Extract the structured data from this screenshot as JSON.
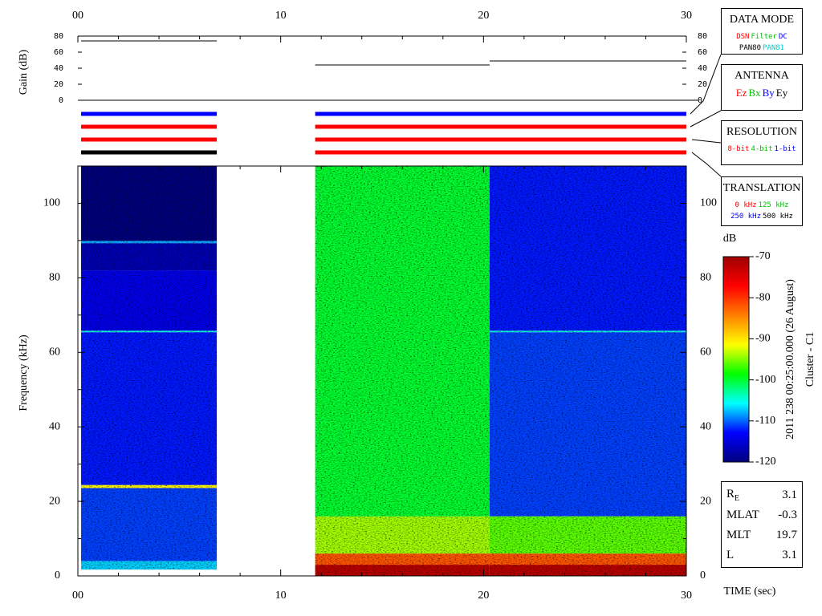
{
  "chart_data": {
    "type": "spectrogram",
    "time_axis": {
      "xlim": [
        0,
        30
      ],
      "xticks": [
        {
          "value": 0,
          "label": "00"
        },
        10,
        20,
        30
      ],
      "xminorticks": [
        2,
        4,
        6,
        8,
        12,
        14,
        16,
        18,
        22,
        24,
        26,
        28
      ],
      "xlabel": "TIME (sec)"
    },
    "gain_panel": {
      "ylabel": "Gain (dB)",
      "ylim": [
        0,
        80
      ],
      "yticks": [
        0,
        20,
        40,
        60,
        80
      ],
      "color": "#000000",
      "segments": [
        {
          "t": [
            0.16,
            6.85
          ],
          "value": 74
        },
        {
          "t": [
            11.7,
            20.3
          ],
          "value": 44
        },
        {
          "t": [
            20.3,
            30
          ],
          "value": 49
        }
      ]
    },
    "status_bars": [
      [
        {
          "t": [
            0.16,
            6.85
          ],
          "color": "#0000ff"
        },
        {
          "t": [
            11.7,
            30
          ],
          "color": "#0000ff"
        }
      ],
      [
        {
          "t": [
            0.16,
            6.85
          ],
          "color": "#ff0000"
        },
        {
          "t": [
            11.7,
            30
          ],
          "color": "#ff0000"
        }
      ],
      [
        {
          "t": [
            0.16,
            6.85
          ],
          "color": "#ff0000"
        },
        {
          "t": [
            11.7,
            30
          ],
          "color": "#ff0000"
        }
      ],
      [
        {
          "t": [
            0.16,
            6.85
          ],
          "color": "#000000"
        },
        {
          "t": [
            11.7,
            30
          ],
          "color": "#ff0000"
        }
      ]
    ],
    "spectrogram": {
      "ylabel": "Frequency (kHz)",
      "ylim": [
        0,
        110
      ],
      "yticks": [
        0,
        20,
        40,
        60,
        80,
        100
      ],
      "yminorticks": [
        10,
        30,
        50,
        70,
        90
      ],
      "segments": [
        {
          "t": [
            0.16,
            6.85
          ],
          "bands": [
            {
              "f": [
                1.7,
                4
              ],
              "db": -107
            },
            {
              "f": [
                4,
                23.6
              ],
              "db": -111
            },
            {
              "f": [
                23.6,
                24.4
              ],
              "db": -91
            },
            {
              "f": [
                24.4,
                65.4
              ],
              "db": -112
            },
            {
              "f": [
                65.4,
                65.8
              ],
              "db": -105
            },
            {
              "f": [
                65.8,
                82
              ],
              "db": -114
            },
            {
              "f": [
                82,
                89.3
              ],
              "db": -117
            },
            {
              "f": [
                89.3,
                89.9
              ],
              "db": -108
            },
            {
              "f": [
                89.9,
                110
              ],
              "db": -120
            }
          ]
        },
        {
          "t": [
            11.7,
            20.3
          ],
          "bands": [
            {
              "f": [
                0,
                3
              ],
              "db": -72
            },
            {
              "f": [
                3,
                6
              ],
              "db": -82
            },
            {
              "f": [
                6,
                16
              ],
              "db": -94
            },
            {
              "f": [
                16,
                110
              ],
              "db": -100
            }
          ]
        },
        {
          "t": [
            20.3,
            30
          ],
          "bands": [
            {
              "f": [
                0,
                3
              ],
              "db": -72
            },
            {
              "f": [
                3,
                6
              ],
              "db": -82
            },
            {
              "f": [
                6,
                16
              ],
              "db": -96
            },
            {
              "f": [
                16,
                65.4
              ],
              "db": -111
            },
            {
              "f": [
                65.4,
                65.8
              ],
              "db": -105
            },
            {
              "f": [
                65.8,
                110
              ],
              "db": -112
            }
          ]
        }
      ]
    },
    "colorbar": {
      "title": "dB",
      "lim": [
        -120,
        -70
      ],
      "ticks": [
        -70,
        -80,
        -90,
        -100,
        -110,
        -120
      ],
      "colormap": [
        "#00007f",
        "#0000ff",
        "#00ffff",
        "#00ff00",
        "#ffff00",
        "#ff7f00",
        "#ff0000",
        "#9f0000"
      ],
      "date_label": "2011 238 00:25:00.000 (26 August)",
      "source_label": "Cluster - C1"
    },
    "legends": [
      {
        "title": "DATA MODE",
        "rows": [
          [
            {
              "text": "DSN",
              "color": "#ff0000"
            },
            {
              "text": "Filter",
              "color": "#00c000"
            },
            {
              "text": "DC",
              "color": "#0000ff"
            }
          ],
          [
            {
              "text": "PAN80",
              "color": "#000000"
            },
            {
              "text": "PAN81",
              "color": "#00cccc"
            }
          ]
        ]
      },
      {
        "title": "ANTENNA",
        "rows": [
          [
            {
              "text": "Ez",
              "color": "#ff0000"
            },
            {
              "text": "Bx",
              "color": "#00c000"
            },
            {
              "text": "By",
              "color": "#0000ff"
            },
            {
              "text": "Ey",
              "color": "#000000"
            }
          ]
        ]
      },
      {
        "title": "RESOLUTION",
        "rows": [
          [
            {
              "text": "8-bit",
              "color": "#ff0000"
            },
            {
              "text": "4-bit",
              "color": "#00c000"
            },
            {
              "text": "1-bit",
              "color": "#0000ff"
            }
          ]
        ]
      },
      {
        "title": "TRANSLATION",
        "rows": [
          [
            {
              "text": "0 kHz",
              "color": "#ff0000"
            },
            {
              "text": "125 kHz",
              "color": "#00c000"
            }
          ],
          [
            {
              "text": "250 kHz",
              "color": "#0000ff"
            },
            {
              "text": "500 kHz",
              "color": "#000000"
            }
          ]
        ]
      }
    ],
    "info": [
      {
        "label": "R",
        "sub": "E",
        "value": 3.1
      },
      {
        "label": "MLAT",
        "value": -0.3
      },
      {
        "label": "MLT",
        "value": 19.7
      },
      {
        "label": "L",
        "value": 3.1
      }
    ]
  }
}
